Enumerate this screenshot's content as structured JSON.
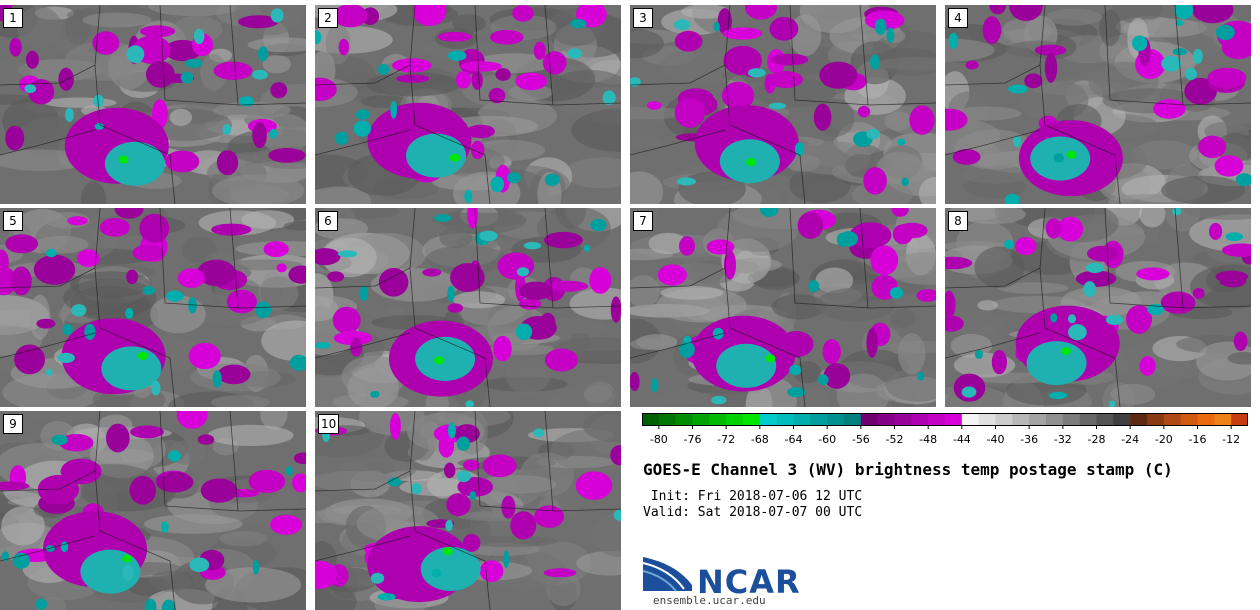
{
  "header": {
    "title": "GOES-E Channel 3 (WV) brightness temp postage stamp (C)",
    "init": " Init: Fri 2018-07-06 12 UTC",
    "valid": "Valid: Sat 2018-07-07 00 UTC"
  },
  "panels": [
    {
      "label": "1",
      "seed": 11
    },
    {
      "label": "2",
      "seed": 23
    },
    {
      "label": "3",
      "seed": 37
    },
    {
      "label": "4",
      "seed": 41
    },
    {
      "label": "5",
      "seed": 53
    },
    {
      "label": "6",
      "seed": 67
    },
    {
      "label": "7",
      "seed": 79
    },
    {
      "label": "8",
      "seed": 83
    },
    {
      "label": "9",
      "seed": 97
    },
    {
      "label": "10",
      "seed": 101
    }
  ],
  "logo": {
    "word": "NCAR",
    "url": "ensemble.ucar.edu"
  },
  "chart_data": {
    "type": "heatmap",
    "title": "GOES-E Channel 3 (WV) brightness temp postage stamp (C)",
    "units": "C",
    "colorbar": {
      "range": [
        -82,
        -10
      ],
      "tick_labels": [
        "-80",
        "-76",
        "-72",
        "-68",
        "-64",
        "-60",
        "-56",
        "-52",
        "-48",
        "-44",
        "-40",
        "-36",
        "-32",
        "-28",
        "-24",
        "-20",
        "-16",
        "-12"
      ],
      "tick_values": [
        -80,
        -76,
        -72,
        -68,
        -64,
        -60,
        -56,
        -52,
        -48,
        -44,
        -40,
        -36,
        -32,
        -28,
        -24,
        -20,
        -16,
        -12
      ],
      "bins": [
        {
          "from": -82,
          "to": -80,
          "color": "#005f00"
        },
        {
          "from": -80,
          "to": -78,
          "color": "#007600"
        },
        {
          "from": -78,
          "to": -76,
          "color": "#008c00"
        },
        {
          "from": -76,
          "to": -74,
          "color": "#00a300"
        },
        {
          "from": -74,
          "to": -72,
          "color": "#00bb00"
        },
        {
          "from": -72,
          "to": -70,
          "color": "#00d100"
        },
        {
          "from": -70,
          "to": -68,
          "color": "#00e800"
        },
        {
          "from": -68,
          "to": -66,
          "color": "#00cccc"
        },
        {
          "from": -66,
          "to": -64,
          "color": "#00bdbd"
        },
        {
          "from": -64,
          "to": -62,
          "color": "#00aeae"
        },
        {
          "from": -62,
          "to": -60,
          "color": "#009f9f"
        },
        {
          "from": -60,
          "to": -58,
          "color": "#009090"
        },
        {
          "from": -58,
          "to": -56,
          "color": "#008080"
        },
        {
          "from": -56,
          "to": -54,
          "color": "#700070"
        },
        {
          "from": -54,
          "to": -52,
          "color": "#850085"
        },
        {
          "from": -52,
          "to": -50,
          "color": "#9a009a"
        },
        {
          "from": -50,
          "to": -48,
          "color": "#af00af"
        },
        {
          "from": -48,
          "to": -46,
          "color": "#c300c3"
        },
        {
          "from": -46,
          "to": -44,
          "color": "#d800d8"
        },
        {
          "from": -44,
          "to": -42,
          "color": "#f4f4f4"
        },
        {
          "from": -42,
          "to": -40,
          "color": "#e0e0e0"
        },
        {
          "from": -40,
          "to": -38,
          "color": "#cccccc"
        },
        {
          "from": -38,
          "to": -36,
          "color": "#b8b8b8"
        },
        {
          "from": -36,
          "to": -34,
          "color": "#a4a4a4"
        },
        {
          "from": -34,
          "to": -32,
          "color": "#909090"
        },
        {
          "from": -32,
          "to": -30,
          "color": "#7c7c7c"
        },
        {
          "from": -30,
          "to": -28,
          "color": "#686868"
        },
        {
          "from": -28,
          "to": -26,
          "color": "#545454"
        },
        {
          "from": -26,
          "to": -24,
          "color": "#404040"
        },
        {
          "from": -24,
          "to": -22,
          "color": "#5c2a10"
        },
        {
          "from": -22,
          "to": -20,
          "color": "#8a3a12"
        },
        {
          "from": -20,
          "to": -18,
          "color": "#b04a14"
        },
        {
          "from": -18,
          "to": -16,
          "color": "#d05a10"
        },
        {
          "from": -16,
          "to": -14,
          "color": "#ea6a0c"
        },
        {
          "from": -14,
          "to": -12,
          "color": "#f08018"
        },
        {
          "from": -12,
          "to": -10,
          "color": "#c83a10"
        }
      ]
    }
  }
}
